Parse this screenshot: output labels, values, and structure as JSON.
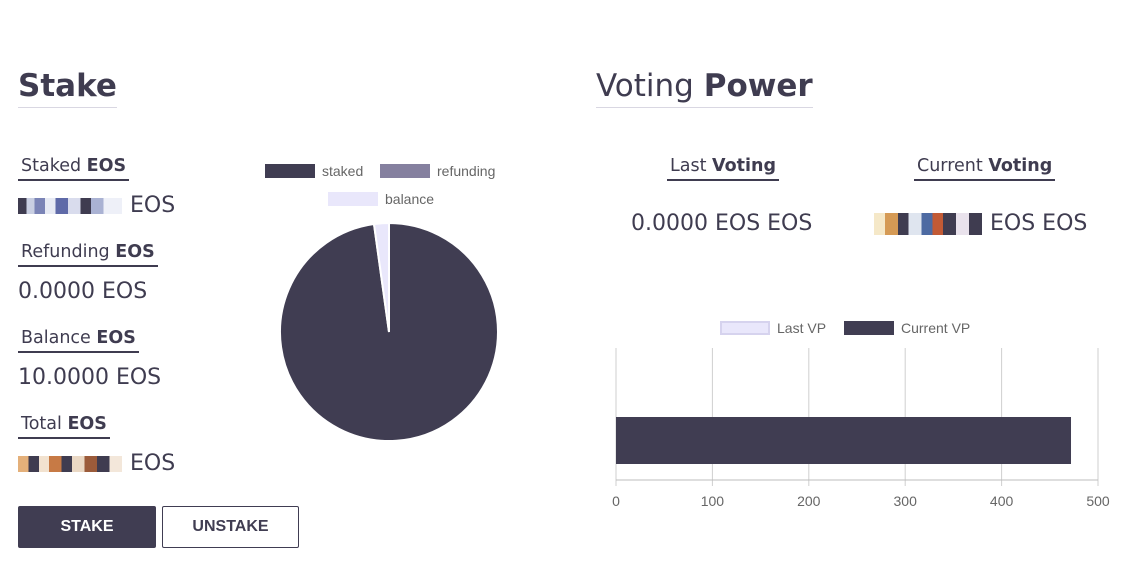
{
  "stake": {
    "title": "Stake",
    "staked": {
      "label": "Staked",
      "unit_label": "EOS",
      "value_suffix": "EOS"
    },
    "refunding": {
      "label": "Refunding",
      "unit_label": "EOS",
      "value": "0.0000 EOS"
    },
    "balance": {
      "label": "Balance",
      "unit_label": "EOS",
      "value": "10.0000 EOS"
    },
    "total": {
      "label": "Total",
      "unit_label": "EOS",
      "value_suffix": "EOS"
    },
    "buttons": {
      "stake": "STAKE",
      "unstake": "UNSTAKE"
    }
  },
  "voting": {
    "title_light": "Voting",
    "title_bold": "Power",
    "last": {
      "label": "Last",
      "label_bold": "Voting",
      "value": "0.0000 EOS EOS"
    },
    "current": {
      "label": "Current",
      "label_bold": "Voting",
      "value_suffix": "EOS EOS"
    }
  },
  "chart_data": [
    {
      "type": "pie",
      "legend": [
        "staked",
        "refunding",
        "balance"
      ],
      "colors": [
        "#403d52",
        "#85809f",
        "#e9e7fb"
      ],
      "values": [
        97.8,
        0,
        2.2
      ],
      "legend_position": "top"
    },
    {
      "type": "bar",
      "orientation": "horizontal",
      "series": [
        {
          "name": "Last VP",
          "values": [
            0
          ],
          "color": "#e9e7fb"
        },
        {
          "name": "Current VP",
          "values": [
            472
          ],
          "color": "#403d52"
        }
      ],
      "xlim": [
        0,
        500
      ],
      "xticks": [
        "0",
        "100",
        "200",
        "300",
        "400",
        "500"
      ],
      "grid": true,
      "legend_position": "top"
    }
  ]
}
